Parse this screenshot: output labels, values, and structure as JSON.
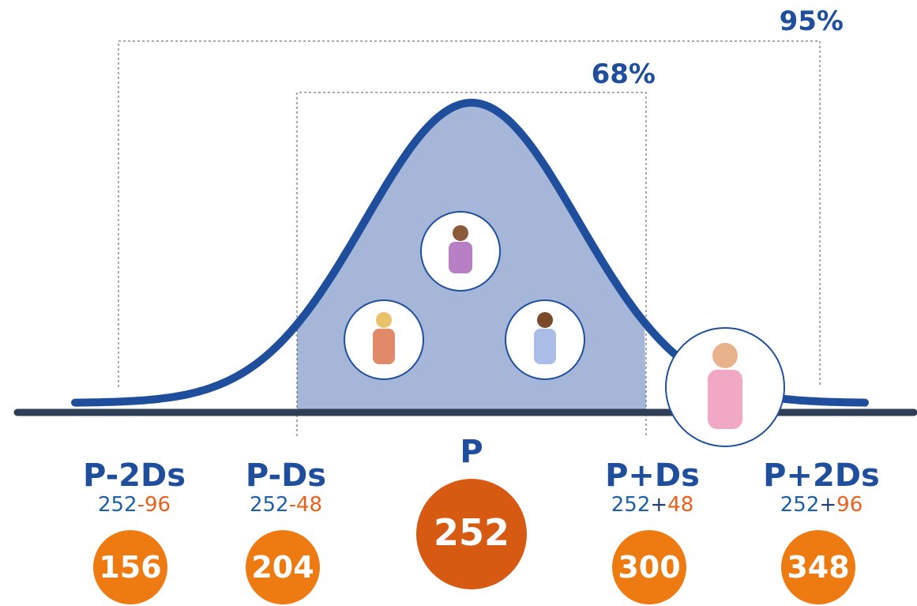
{
  "ranges": {
    "outer": "95%",
    "inner": "68%"
  },
  "center": {
    "label": "P",
    "value": "252"
  },
  "markers": [
    {
      "label": "P-2Ds",
      "base": "252",
      "op": "-",
      "offset": "96",
      "value": "156"
    },
    {
      "label": "P-Ds",
      "base": "252",
      "op": "-",
      "offset": "48",
      "value": "204"
    },
    {
      "label": "P+Ds",
      "base": "252",
      "op": "+",
      "offset": "48",
      "value": "300"
    },
    {
      "label": "P+2Ds",
      "base": "252",
      "op": "+",
      "offset": "96",
      "value": "348"
    }
  ]
}
